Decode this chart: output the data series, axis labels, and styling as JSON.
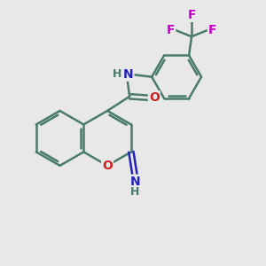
{
  "bg_color": "#e8e8e8",
  "bond_color": "#4a7a6a",
  "N_color": "#2222bb",
  "O_color": "#cc2222",
  "F_color": "#cc00cc",
  "line_width": 1.8,
  "font_size": 10,
  "fig_size": [
    3.0,
    3.0
  ],
  "dpi": 100,
  "xlim": [
    0,
    10
  ],
  "ylim": [
    0,
    10
  ]
}
